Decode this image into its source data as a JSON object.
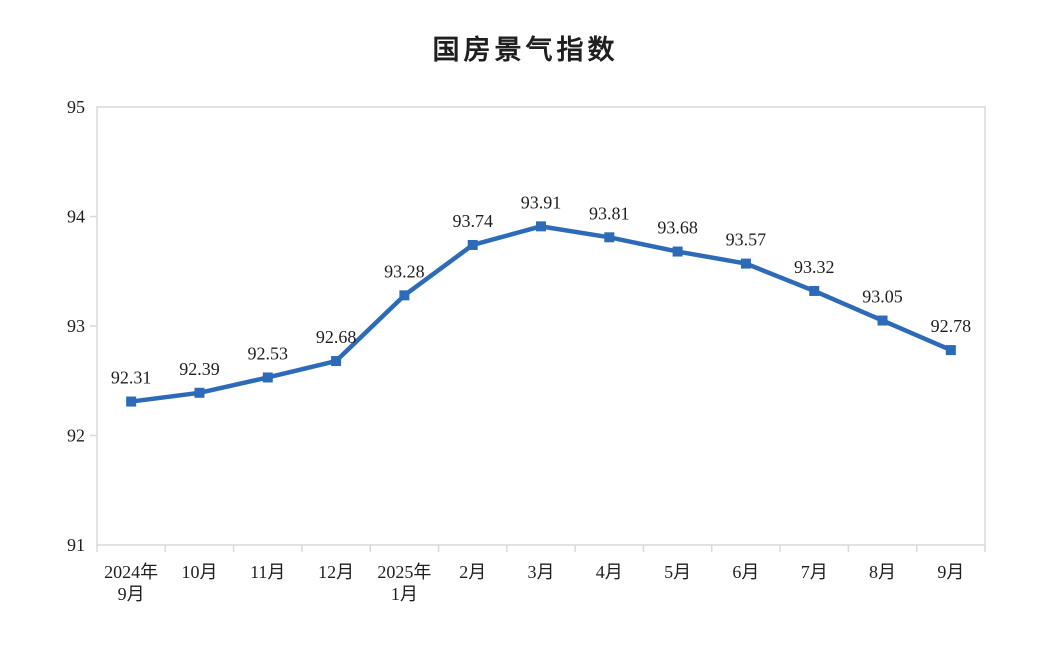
{
  "chart_data": {
    "type": "line",
    "title": "国房景气指数",
    "categories": [
      "2024年\n9月",
      "10月",
      "11月",
      "12月",
      "2025年\n1月",
      "2月",
      "3月",
      "4月",
      "5月",
      "6月",
      "7月",
      "8月",
      "9月"
    ],
    "values": [
      92.31,
      92.39,
      92.53,
      92.68,
      93.28,
      93.74,
      93.91,
      93.81,
      93.68,
      93.57,
      93.32,
      93.05,
      92.78
    ],
    "data_labels": [
      "92.31",
      "92.39",
      "92.53",
      "92.68",
      "93.28",
      "93.74",
      "93.91",
      "93.81",
      "93.68",
      "93.57",
      "93.32",
      "93.05",
      "92.78"
    ],
    "xlabel": "",
    "ylabel": "",
    "ylim": [
      91,
      95
    ],
    "ytick_step": 1,
    "ytick_labels": [
      "91",
      "92",
      "93",
      "94",
      "95"
    ],
    "grid": false,
    "legend": "none",
    "marker": "square",
    "colors": {
      "line": "#2D6BB8",
      "plot_border": "#D9D9D9",
      "text": "#1F1F1F",
      "background": "#FFFFFF"
    }
  }
}
